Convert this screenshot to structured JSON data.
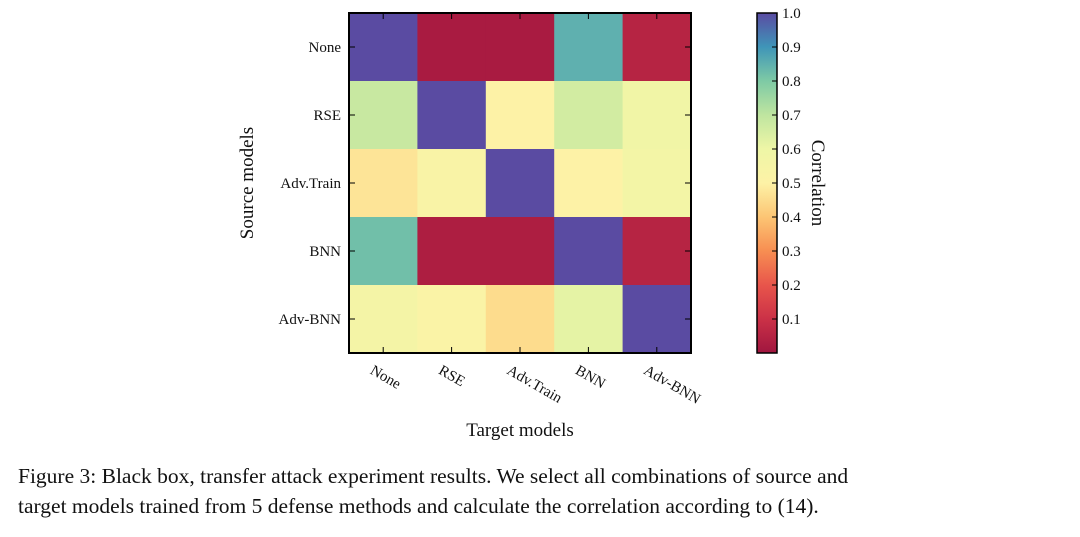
{
  "chart_data": {
    "type": "heatmap",
    "xlabel": "Target models",
    "ylabel": "Source models",
    "x_categories": [
      "None",
      "RSE",
      "Adv.Train",
      "BNN",
      "Adv-BNN"
    ],
    "y_categories": [
      "None",
      "RSE",
      "Adv.Train",
      "BNN",
      "Adv-BNN"
    ],
    "values": [
      [
        1.0,
        0.02,
        0.02,
        0.85,
        0.05
      ],
      [
        0.68,
        1.0,
        0.5,
        0.66,
        0.58
      ],
      [
        0.47,
        0.53,
        1.0,
        0.5,
        0.57
      ],
      [
        0.82,
        0.03,
        0.03,
        1.0,
        0.05
      ],
      [
        0.56,
        0.52,
        0.45,
        0.62,
        1.0
      ]
    ],
    "colorbar": {
      "label": "Correlation",
      "range": [
        0.0,
        1.0
      ],
      "ticks": [
        "0.1",
        "0.2",
        "0.3",
        "0.4",
        "0.5",
        "0.6",
        "0.7",
        "0.8",
        "0.9",
        "1.0"
      ],
      "colormap": "Spectral"
    },
    "colormap_stops": [
      {
        "v": 0.0,
        "c": "#a0163f"
      },
      {
        "v": 0.1,
        "c": "#cb3147"
      },
      {
        "v": 0.2,
        "c": "#e8554b"
      },
      {
        "v": 0.3,
        "c": "#f78e52"
      },
      {
        "v": 0.4,
        "c": "#fcc574"
      },
      {
        "v": 0.5,
        "c": "#fdf2a6"
      },
      {
        "v": 0.6,
        "c": "#eef6a6"
      },
      {
        "v": 0.7,
        "c": "#bfe5a0"
      },
      {
        "v": 0.8,
        "c": "#7ecaa5"
      },
      {
        "v": 0.9,
        "c": "#3f95b8"
      },
      {
        "v": 1.0,
        "c": "#5a4ba2"
      }
    ]
  },
  "caption": {
    "line1": "Figure 3: Black box, transfer attack experiment results. We select all combinations of source and",
    "line2": "target models trained from 5 defense methods and calculate the correlation according to (14)."
  }
}
